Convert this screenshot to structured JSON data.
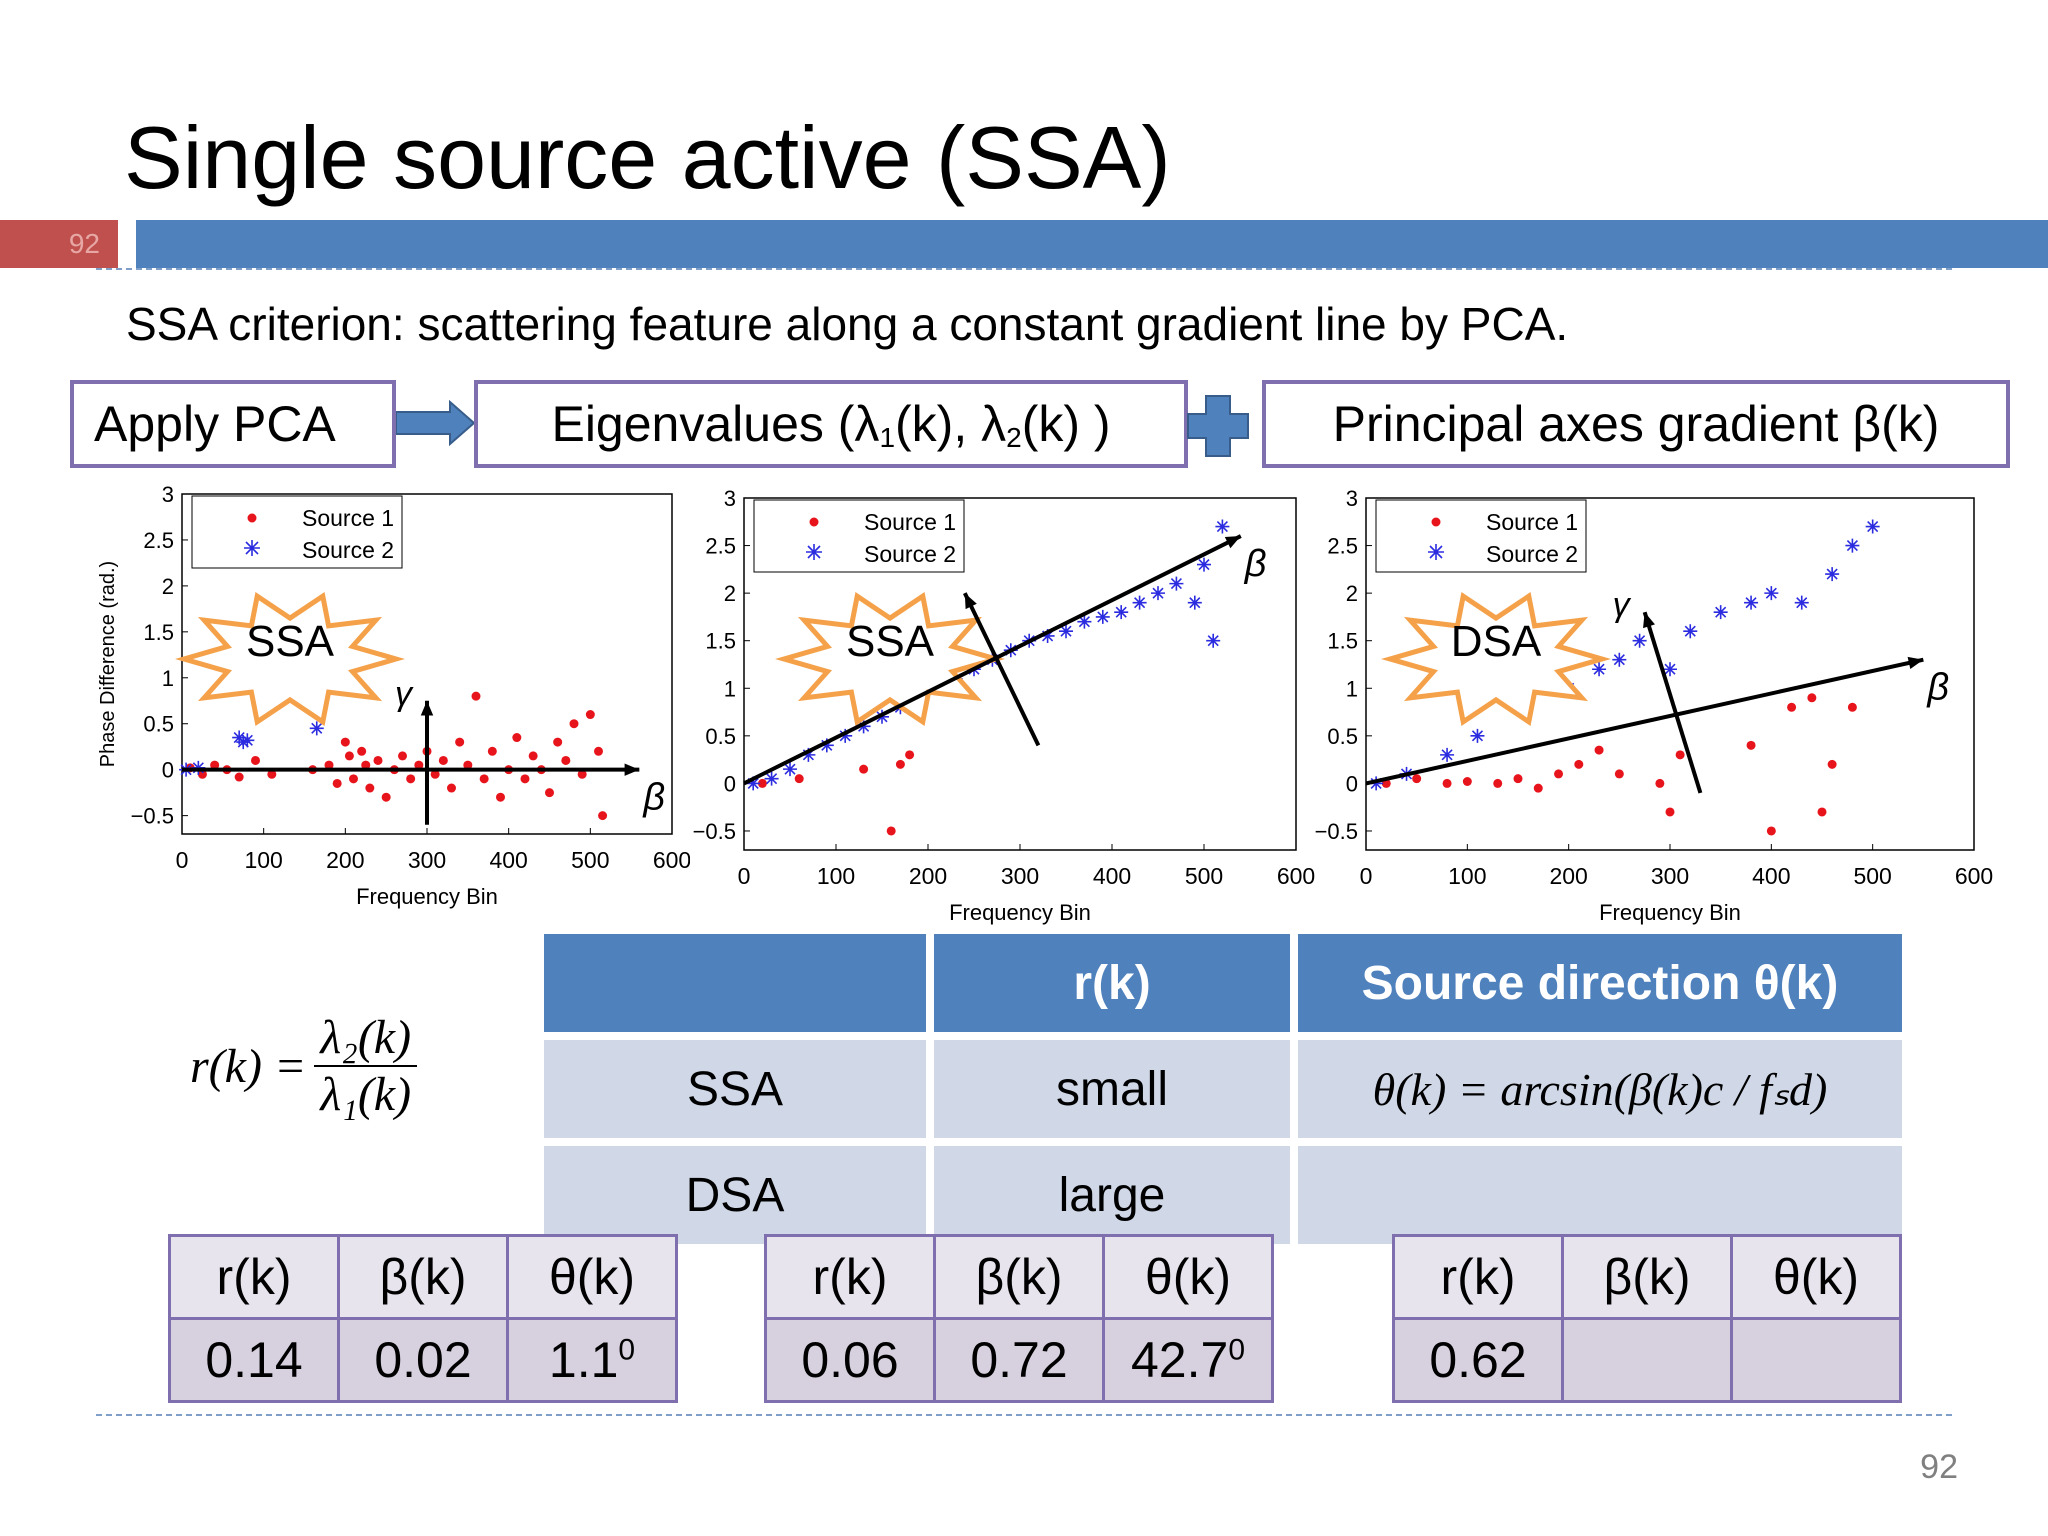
{
  "slide": {
    "title": "Single source active (SSA)",
    "tab_number": "92",
    "criterion": "SSA criterion: scattering feature along a constant gradient line by PCA.",
    "page_number": "92"
  },
  "flow": {
    "box1": "Apply PCA",
    "box2_prefix": "Eigenvalues (λ",
    "box2_sub1": "1",
    "box2_mid": "(k), λ",
    "box2_sub2": "2",
    "box2_suffix": "(k) )",
    "box3": "Principal axes gradient β(k)",
    "arrow_icon": "right-arrow-icon",
    "plus_icon": "plus-icon"
  },
  "formula": {
    "lhs": "r(k) =",
    "numerator": "λ₂(k)",
    "denominator": "λ₁(k)"
  },
  "charts": [
    {
      "ylabel": "Phase Difference (rad.)",
      "xlabel": "Frequency Bin",
      "burst_label": "SSA",
      "legend": [
        "Source 1",
        "Source 2"
      ],
      "gamma": "γ",
      "beta": "β"
    },
    {
      "ylabel": "",
      "xlabel": "Frequency Bin",
      "burst_label": "SSA",
      "legend": [
        "Source 1",
        "Source 2"
      ],
      "gamma": "",
      "beta": "β"
    },
    {
      "ylabel": "",
      "xlabel": "Frequency Bin",
      "burst_label": "DSA",
      "legend": [
        "Source 1",
        "Source 2"
      ],
      "gamma": "γ",
      "beta": "β"
    }
  ],
  "chart_data": [
    {
      "type": "scatter",
      "xlabel": "Frequency Bin",
      "ylabel": "Phase Difference (rad.)",
      "xlim": [
        0,
        600
      ],
      "ylim": [
        -0.7,
        3
      ],
      "xticks": [
        "0",
        "100",
        "200",
        "300",
        "400",
        "500",
        "600"
      ],
      "yticks": [
        "−0.5",
        "0",
        "0.5",
        "1",
        "1.5",
        "2",
        "2.5",
        "3"
      ],
      "series": [
        {
          "name": "Source 1",
          "x": [
            10,
            25,
            40,
            55,
            70,
            90,
            110,
            160,
            180,
            190,
            200,
            205,
            210,
            220,
            225,
            230,
            240,
            250,
            260,
            270,
            280,
            290,
            300,
            310,
            320,
            330,
            340,
            350,
            360,
            370,
            380,
            390,
            400,
            410,
            420,
            430,
            440,
            450,
            460,
            470,
            480,
            490,
            500,
            510,
            515
          ],
          "y": [
            0.02,
            -0.05,
            0.05,
            0.0,
            -0.08,
            0.1,
            -0.05,
            0.0,
            0.05,
            -0.15,
            0.3,
            0.15,
            -0.1,
            0.2,
            0.05,
            -0.2,
            0.1,
            -0.3,
            0.0,
            0.15,
            -0.1,
            0.05,
            0.2,
            -0.05,
            0.1,
            -0.2,
            0.3,
            0.05,
            0.8,
            -0.1,
            0.2,
            -0.3,
            0.0,
            0.35,
            -0.1,
            0.15,
            0.0,
            -0.25,
            0.3,
            0.1,
            0.5,
            -0.05,
            0.6,
            0.2,
            -0.5
          ]
        },
        {
          "name": "Source 2",
          "x": [
            5,
            20,
            70,
            75,
            80,
            165
          ],
          "y": [
            0.0,
            0.02,
            0.35,
            0.3,
            0.32,
            0.45
          ]
        }
      ]
    },
    {
      "type": "scatter",
      "xlabel": "Frequency Bin",
      "ylabel": "",
      "xlim": [
        0,
        600
      ],
      "ylim": [
        -0.7,
        3
      ],
      "xticks": [
        "0",
        "100",
        "200",
        "300",
        "400",
        "500",
        "600"
      ],
      "yticks": [
        "−0.5",
        "0",
        "0.5",
        "1",
        "1.5",
        "2",
        "2.5",
        "3"
      ],
      "series": [
        {
          "name": "Source 1",
          "x": [
            20,
            60,
            130,
            160,
            170,
            180
          ],
          "y": [
            0.0,
            0.05,
            0.15,
            -0.5,
            0.2,
            0.3
          ]
        },
        {
          "name": "Source 2",
          "x": [
            10,
            30,
            50,
            70,
            90,
            110,
            130,
            150,
            170,
            190,
            210,
            230,
            250,
            270,
            290,
            310,
            330,
            350,
            370,
            390,
            410,
            430,
            450,
            470,
            490,
            500,
            510,
            520
          ],
          "y": [
            0.0,
            0.05,
            0.15,
            0.3,
            0.4,
            0.5,
            0.6,
            0.7,
            0.8,
            0.9,
            1.0,
            1.1,
            1.2,
            1.3,
            1.4,
            1.5,
            1.55,
            1.6,
            1.7,
            1.75,
            1.8,
            1.9,
            2.0,
            2.1,
            1.9,
            2.3,
            1.5,
            2.7
          ]
        }
      ]
    },
    {
      "type": "scatter",
      "xlabel": "Frequency Bin",
      "ylabel": "",
      "xlim": [
        0,
        600
      ],
      "ylim": [
        -0.7,
        3
      ],
      "xticks": [
        "0",
        "100",
        "200",
        "300",
        "400",
        "500",
        "600"
      ],
      "yticks": [
        "−0.5",
        "0",
        "0.5",
        "1",
        "1.5",
        "2",
        "2.5",
        "3"
      ],
      "series": [
        {
          "name": "Source 1",
          "x": [
            20,
            50,
            80,
            100,
            130,
            150,
            170,
            190,
            210,
            230,
            250,
            290,
            300,
            310,
            380,
            400,
            420,
            440,
            450,
            460,
            480
          ],
          "y": [
            0.0,
            0.05,
            0.0,
            0.02,
            0.0,
            0.05,
            -0.05,
            0.1,
            0.2,
            0.35,
            0.1,
            0.0,
            -0.3,
            0.3,
            0.4,
            -0.5,
            0.8,
            0.9,
            -0.3,
            0.2,
            0.8
          ]
        },
        {
          "name": "Source 2",
          "x": [
            10,
            40,
            80,
            110,
            150,
            200,
            230,
            250,
            270,
            300,
            320,
            350,
            380,
            400,
            430,
            460,
            480,
            500
          ],
          "y": [
            0.0,
            0.1,
            0.3,
            0.5,
            0.8,
            1.0,
            1.2,
            1.3,
            1.5,
            1.2,
            1.6,
            1.8,
            1.9,
            2.0,
            1.9,
            2.2,
            2.5,
            2.7
          ]
        }
      ]
    }
  ],
  "decision_table": {
    "headers": [
      "",
      "r(k)",
      "Source direction θ(k)"
    ],
    "rows": [
      {
        "label": "SSA",
        "r": "small",
        "direction": "θ(k) = arcsin(β(k)c / fₛd)"
      },
      {
        "label": "DSA",
        "r": "large",
        "direction": ""
      }
    ]
  },
  "value_tables": [
    {
      "headers": [
        "r(k)",
        "β(k)",
        "θ(k)"
      ],
      "values": [
        "0.14",
        "0.02",
        "1.1"
      ],
      "sup": "0"
    },
    {
      "headers": [
        "r(k)",
        "β(k)",
        "θ(k)"
      ],
      "values": [
        "0.06",
        "0.72",
        "42.7"
      ],
      "sup": "0"
    },
    {
      "headers": [
        "r(k)",
        "β(k)",
        "θ(k)"
      ],
      "values": [
        "0.62",
        "",
        ""
      ],
      "sup": ""
    }
  ],
  "colors": {
    "accent_blue": "#4f81bd",
    "accent_red": "#c0504d",
    "box_border": "#7f6fae",
    "source1": "#e8141c",
    "source2": "#2b2be0",
    "burst": "#f4a14a"
  }
}
